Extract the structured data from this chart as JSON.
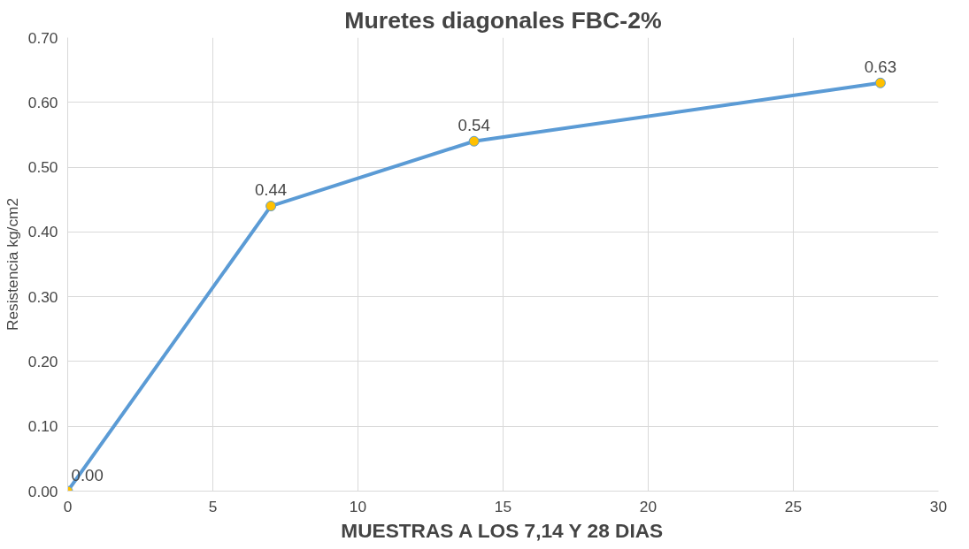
{
  "chart_data": {
    "type": "line",
    "title": "Muretes diagonales FBC-2%",
    "xlabel": "MUESTRAS A LOS 7,14 Y 28 DIAS",
    "ylabel": "Resistencia kg/cm2",
    "x": [
      0,
      7,
      14,
      28
    ],
    "series": [
      {
        "color": "#5b9bd5",
        "values": [
          0.0,
          0.44,
          0.54,
          0.63
        ],
        "value_labels": [
          "0.00",
          "0.44",
          "0.54",
          "0.63"
        ]
      }
    ],
    "marker": "circle",
    "xlim": [
      0,
      30
    ],
    "xticks": [
      0,
      5,
      10,
      15,
      20,
      25,
      30
    ],
    "ylim": [
      0,
      0.7
    ],
    "yticks": [
      {
        "value": 0,
        "label": "0.00"
      },
      {
        "value": 0.1,
        "label": "0.10"
      },
      {
        "value": 0.2,
        "label": "0.20"
      },
      {
        "value": 0.3,
        "label": "0.30"
      },
      {
        "value": 0.4,
        "label": "0.40"
      },
      {
        "value": 0.5,
        "label": "0.50"
      },
      {
        "value": 0.6,
        "label": "0.60"
      },
      {
        "value": 0.7,
        "label": "0.70"
      }
    ],
    "grid": true
  }
}
